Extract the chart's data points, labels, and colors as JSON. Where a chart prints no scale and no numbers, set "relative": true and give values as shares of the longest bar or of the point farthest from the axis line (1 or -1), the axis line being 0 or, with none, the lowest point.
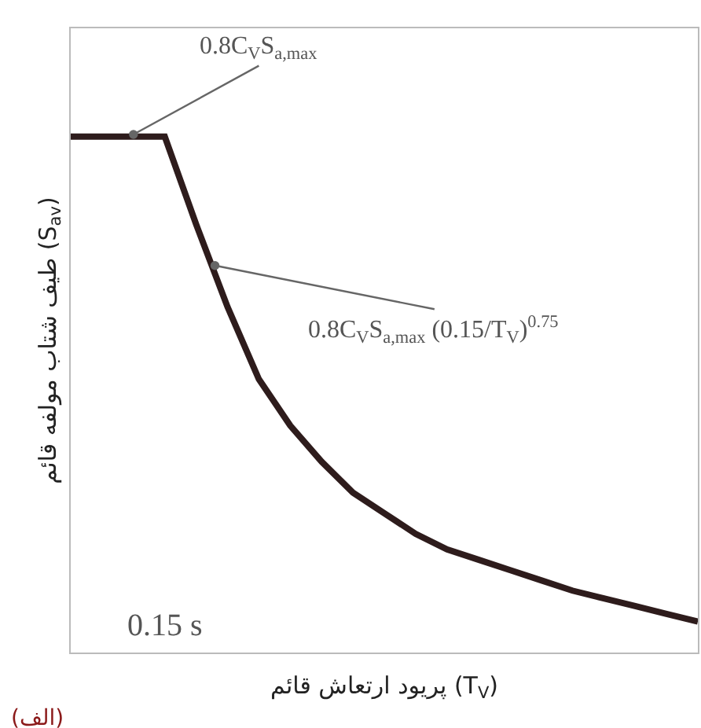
{
  "chart_data": {
    "type": "line",
    "relative": true,
    "xlabel": "پریود ارتعاش قائم (T$_{V}$)",
    "ylabel": "طیف شتاب مولفه قائم (S$_{av}$)",
    "categories": [
      null,
      null,
      null,
      null,
      null,
      null,
      null,
      null,
      null,
      null,
      null,
      null,
      null,
      null,
      null,
      null,
      null,
      null,
      null,
      null,
      null
    ],
    "series": [
      {
        "color": "#2e1c1c",
        "values": [
          1,
          1,
          1,
          1,
          0.83,
          0.67,
          0.53,
          0.44,
          0.37,
          0.31,
          0.27,
          0.23,
          0.2,
          0.18,
          0.16,
          0.14,
          0.12,
          0.105,
          0.09,
          0.075,
          0.06
        ]
      }
    ],
    "marker": "none",
    "line_style": "solid",
    "annotations": [
      "0.8C$_{V}$S$_{a,max}$",
      "0.8C$_{V}$S$_{a,max}$ (0.15/T$_{V}$)$^{0.75}$",
      "0.15 s",
      "(الف)"
    ]
  }
}
